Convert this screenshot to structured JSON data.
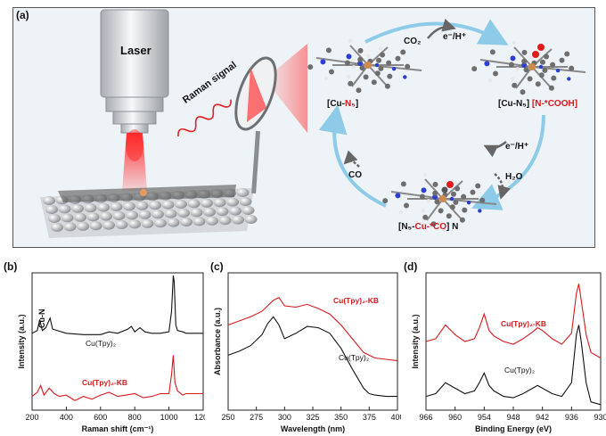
{
  "panel_a": {
    "label": "(a)",
    "laser": "Laser",
    "raman_signal": "Raman signal",
    "co2": "CO₂",
    "e_h_top": "e⁻/H⁺",
    "e_h_right": "e⁻/H⁺",
    "h2o": "H₂O",
    "co": "CO",
    "cu_n5_left_a": "[Cu-",
    "cu_n5_left_b": "N₅",
    "cu_n5_left_c": "]",
    "cu_n5_right_a": "[Cu-N₅]",
    "cu_n5_right_b": "[N-*COOH]",
    "bottom_a": "[N₅-",
    "bottom_b": "Cu-*CO",
    "bottom_c": "] N",
    "colors": {
      "arrow": "#8ecbe8",
      "laser_beam": "#e8141e",
      "red_text": "#d6181e"
    }
  },
  "panel_b": {
    "label": "(b)",
    "cu_n": "Cu-N"
  },
  "panel_c": {
    "label": "(c)"
  },
  "panel_d": {
    "label": "(d)"
  },
  "chart_data": [
    {
      "type": "line",
      "xlabel": "Raman shift (cm⁻¹)",
      "ylabel": "Intensity (a.u.)",
      "xlim": [
        200,
        1200
      ],
      "xticks": [
        "200",
        "400",
        "600",
        "800",
        "1000",
        "1200"
      ],
      "series": [
        {
          "name": "Cu(Tpy)₂",
          "color": "#111111",
          "x": [
            200,
            230,
            245,
            260,
            280,
            305,
            320,
            400,
            500,
            600,
            650,
            700,
            760,
            780,
            800,
            830,
            860,
            900,
            950,
            1000,
            1015,
            1025,
            1030,
            1040,
            1050,
            1080,
            1100,
            1150,
            1200
          ],
          "y": [
            0.56,
            0.58,
            0.66,
            0.58,
            0.6,
            0.67,
            0.59,
            0.56,
            0.55,
            0.55,
            0.57,
            0.56,
            0.59,
            0.61,
            0.57,
            0.6,
            0.57,
            0.56,
            0.56,
            0.57,
            0.72,
            0.98,
            0.94,
            0.62,
            0.58,
            0.57,
            0.56,
            0.56,
            0.56
          ]
        },
        {
          "name": "Cu(Tpy)₂-KB",
          "color": "#d6181e",
          "x": [
            200,
            230,
            250,
            270,
            300,
            330,
            360,
            400,
            450,
            500,
            550,
            600,
            650,
            700,
            750,
            800,
            850,
            900,
            950,
            1000,
            1015,
            1025,
            1035,
            1050,
            1080,
            1100,
            1150,
            1200
          ],
          "y": [
            0.1,
            0.13,
            0.18,
            0.11,
            0.16,
            0.12,
            0.1,
            0.11,
            0.07,
            0.1,
            0.08,
            0.11,
            0.13,
            0.1,
            0.11,
            0.12,
            0.09,
            0.1,
            0.12,
            0.12,
            0.26,
            0.4,
            0.2,
            0.14,
            0.11,
            0.12,
            0.12,
            0.12
          ]
        }
      ]
    },
    {
      "type": "line",
      "xlabel": "Wavelength (nm)",
      "ylabel": "Absorbance (a.u.)",
      "xlim": [
        250,
        400
      ],
      "xticks": [
        "250",
        "275",
        "300",
        "325",
        "350",
        "375",
        "400"
      ],
      "series": [
        {
          "name": "Cu(Tpy)₂-KB",
          "color": "#d6181e",
          "x": [
            250,
            260,
            270,
            280,
            290,
            295,
            300,
            310,
            320,
            330,
            340,
            350,
            360,
            370,
            380,
            390,
            400
          ],
          "y": [
            0.62,
            0.65,
            0.68,
            0.72,
            0.8,
            0.82,
            0.76,
            0.75,
            0.77,
            0.74,
            0.7,
            0.62,
            0.52,
            0.42,
            0.38,
            0.37,
            0.36
          ]
        },
        {
          "name": "Cu(Tpy)₂",
          "color": "#111111",
          "x": [
            250,
            260,
            270,
            280,
            285,
            290,
            295,
            300,
            310,
            320,
            330,
            340,
            350,
            360,
            370,
            375,
            380,
            390,
            400
          ],
          "y": [
            0.4,
            0.43,
            0.47,
            0.55,
            0.63,
            0.68,
            0.62,
            0.52,
            0.56,
            0.61,
            0.6,
            0.56,
            0.45,
            0.3,
            0.16,
            0.12,
            0.11,
            0.1,
            0.1
          ]
        }
      ]
    },
    {
      "type": "line",
      "xlabel": "Binding Energy (eV)",
      "ylabel": "Intensity (a.u.)",
      "xlim": [
        966,
        930
      ],
      "xticks": [
        "966",
        "960",
        "954",
        "948",
        "942",
        "936",
        "930"
      ],
      "series": [
        {
          "name": "Cu(Tpy)₂-KB",
          "color": "#d6181e",
          "x": [
            966,
            964,
            962,
            960,
            958,
            956,
            955,
            954,
            953,
            952,
            950,
            948,
            946,
            944,
            943,
            942,
            940,
            938,
            936,
            935,
            934.5,
            934,
            933,
            932,
            930
          ],
          "y": [
            0.5,
            0.52,
            0.62,
            0.55,
            0.5,
            0.52,
            0.6,
            0.7,
            0.58,
            0.54,
            0.5,
            0.48,
            0.52,
            0.57,
            0.6,
            0.58,
            0.52,
            0.48,
            0.56,
            0.85,
            0.92,
            0.8,
            0.55,
            0.42,
            0.38
          ]
        },
        {
          "name": "Cu(Tpy)₂",
          "color": "#111111",
          "x": [
            966,
            964,
            962,
            960,
            958,
            956,
            955,
            954,
            953,
            952,
            950,
            948,
            946,
            944,
            943,
            942,
            940,
            938,
            936,
            935,
            934.5,
            934,
            933,
            932,
            930
          ],
          "y": [
            0.1,
            0.12,
            0.2,
            0.16,
            0.12,
            0.14,
            0.2,
            0.27,
            0.18,
            0.14,
            0.1,
            0.09,
            0.12,
            0.16,
            0.18,
            0.16,
            0.12,
            0.1,
            0.2,
            0.55,
            0.62,
            0.5,
            0.2,
            0.06,
            0.04
          ]
        }
      ]
    }
  ]
}
